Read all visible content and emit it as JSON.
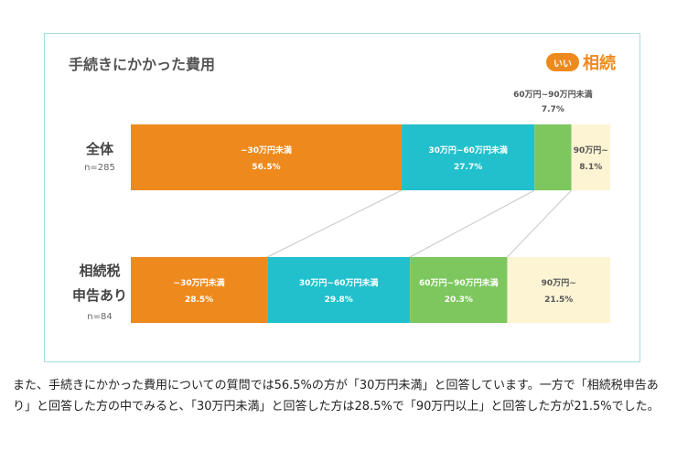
{
  "chart_data": {
    "type": "bar",
    "stacked": true,
    "orientation": "horizontal",
    "title": "手続きにかかった費用",
    "logo": {
      "badge": "いい",
      "text": "相続"
    },
    "categories": [
      "~30万円未満",
      "30万円~60万円未満",
      "60万円~90万円未満",
      "90万円~"
    ],
    "colors": [
      "#ee8a1d",
      "#22c0cc",
      "#7dc75e",
      "#fdf4d4"
    ],
    "rows": [
      {
        "label_lines": [
          "全体"
        ],
        "n": "n=285",
        "values": [
          56.5,
          27.7,
          7.7,
          8.1
        ],
        "labels": [
          "~30万円未満",
          "30万円~60万円未満",
          "60万円~90万円未満",
          "90万円~"
        ],
        "value_labels": [
          "56.5%",
          "27.7%",
          "7.7%",
          "8.1%"
        ]
      },
      {
        "label_lines": [
          "相続税",
          "申告あり"
        ],
        "n": "n=84",
        "values": [
          28.5,
          29.8,
          20.3,
          21.5
        ],
        "labels": [
          "~30万円未満",
          "30万円~60万円未満",
          "60万円~90万円未満",
          "90万円~"
        ],
        "value_labels": [
          "28.5%",
          "29.8%",
          "20.3%",
          "21.5%"
        ]
      }
    ]
  },
  "body_text": "また、手続きにかかった費用についての質問では56.5%の方が「30万円未満」と回答しています。一方で「相続税申告あり」と回答した方の中でみると、「30万円未満」と回答した方は28.5%で「90万円以上」と回答した方が21.5%でした。",
  "colors": {
    "frame": "#a8dcdf",
    "connector": "#c8c8c8",
    "text_dark": "#555555",
    "text_light": "#ffffff"
  }
}
